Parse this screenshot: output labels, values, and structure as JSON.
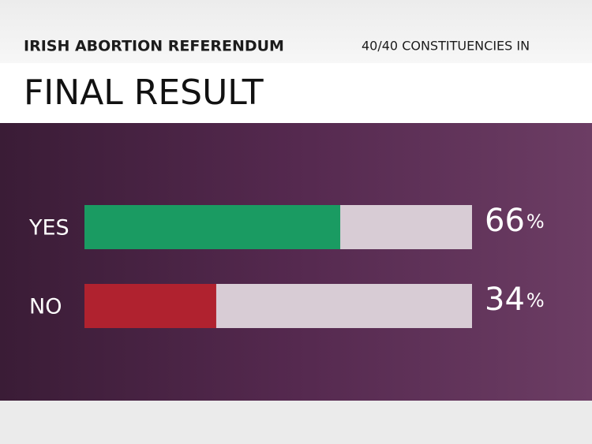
{
  "chart_data": {
    "type": "hbar",
    "header": "IRISH ABORTION REFERENDUM",
    "note": "40/40 CONSTITUENCIES IN",
    "title": "FINAL RESULT",
    "categories": [
      "YES",
      "NO"
    ],
    "values": [
      66,
      34
    ],
    "value_labels": [
      "66%",
      "34%"
    ],
    "colors": [
      "#1a9b62",
      "#b0222f"
    ],
    "xlim": [
      0,
      100
    ]
  }
}
